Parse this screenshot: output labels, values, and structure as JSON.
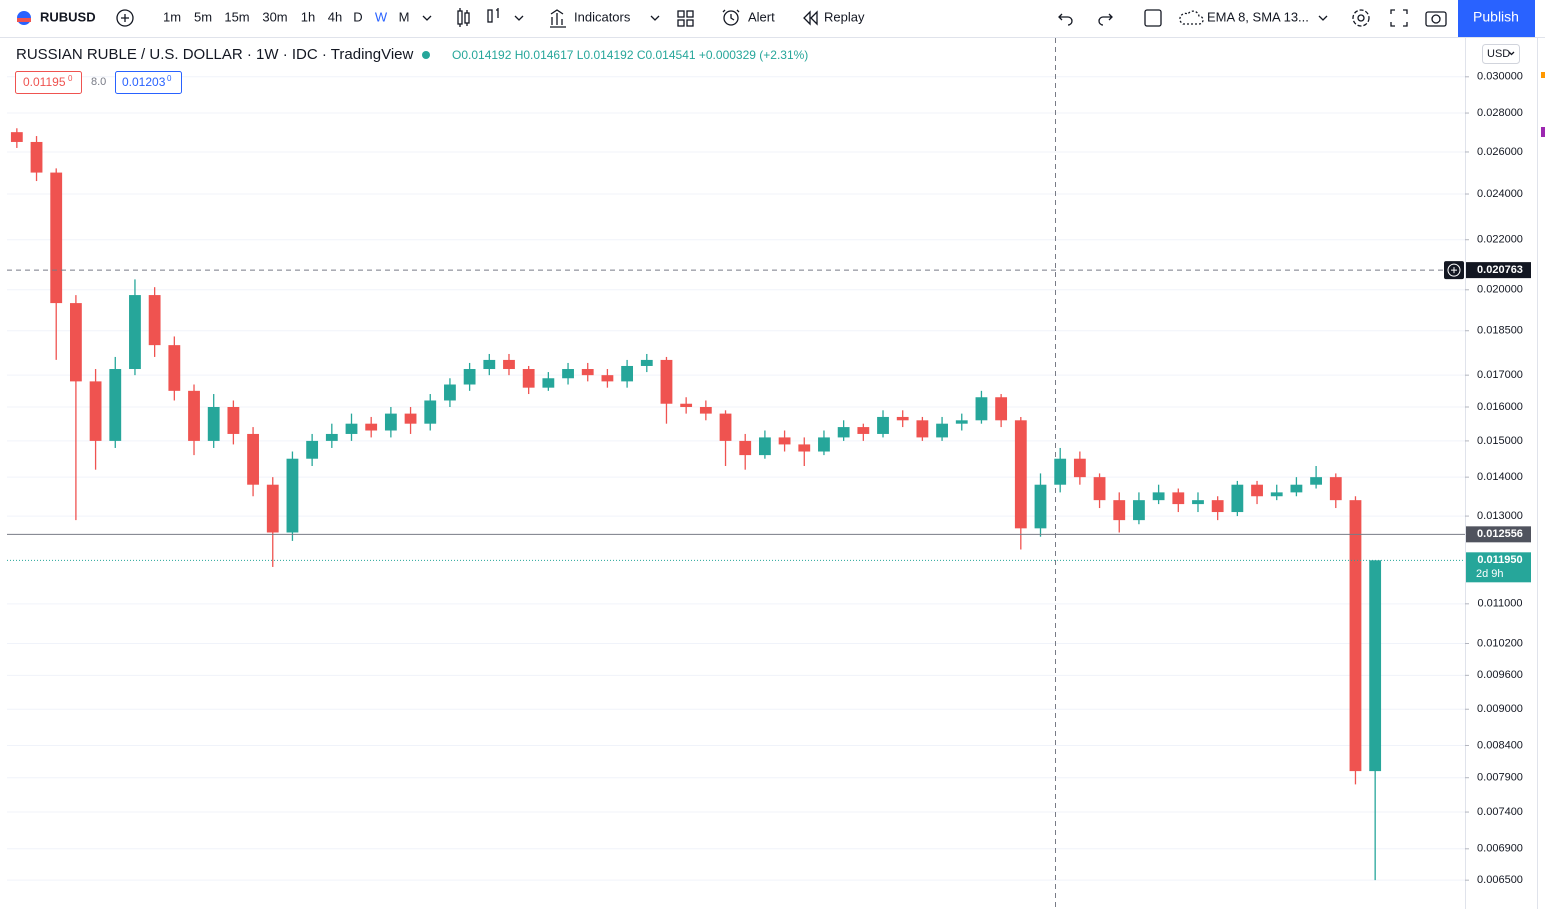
{
  "toolbar": {
    "symbol": "RUBUSD",
    "intervals": [
      "1m",
      "5m",
      "15m",
      "30m",
      "1h",
      "4h",
      "D",
      "W",
      "M"
    ],
    "active_interval_index": 7,
    "indicators": "Indicators",
    "alert": "Alert",
    "replay": "Replay",
    "studies": "EMA 8, SMA 13...",
    "publish": "Publish"
  },
  "legend": {
    "title": "RUSSIAN RUBLE / U.S. DOLLAR · 1W · IDC · TradingView",
    "ohlc": "O0.014192 H0.014617 L0.014192 C0.014541 +0.000329 (+2.31%)",
    "bid": "0.01195",
    "bid_sup": "0",
    "spread": "8.0",
    "ask": "0.01203",
    "ask_sup": "0"
  },
  "chart_data": {
    "type": "candlestick",
    "log_scale": true,
    "grid": true,
    "up_color": "#26a69a",
    "down_color": "#ef5350",
    "currency": "USD",
    "ylim": [
      0.0062,
      0.0323
    ],
    "yticks": [
      {
        "value": 0.0065,
        "label": "0.006500"
      },
      {
        "value": 0.0069,
        "label": "0.006900"
      },
      {
        "value": 0.0074,
        "label": "0.007400"
      },
      {
        "value": 0.0079,
        "label": "0.007900"
      },
      {
        "value": 0.0084,
        "label": "0.008400"
      },
      {
        "value": 0.009,
        "label": "0.009000"
      },
      {
        "value": 0.0096,
        "label": "0.009600"
      },
      {
        "value": 0.0102,
        "label": "0.010200"
      },
      {
        "value": 0.011,
        "label": "0.011000"
      },
      {
        "value": 0.013,
        "label": "0.013000"
      },
      {
        "value": 0.014,
        "label": "0.014000"
      },
      {
        "value": 0.015,
        "label": "0.015000"
      },
      {
        "value": 0.016,
        "label": "0.016000"
      },
      {
        "value": 0.017,
        "label": "0.017000"
      },
      {
        "value": 0.0185,
        "label": "0.018500"
      },
      {
        "value": 0.02,
        "label": "0.020000"
      },
      {
        "value": 0.022,
        "label": "0.022000"
      },
      {
        "value": 0.024,
        "label": "0.024000"
      },
      {
        "value": 0.026,
        "label": "0.026000"
      },
      {
        "value": 0.028,
        "label": "0.028000"
      },
      {
        "value": 0.03,
        "label": "0.030000"
      }
    ],
    "crosshair_price": 0.020763,
    "line_price": 0.012556,
    "last_price": {
      "value": 0.01195,
      "label": "0.011950"
    },
    "countdown": "2d 9h",
    "open": [
      0.027,
      0.0265,
      0.025,
      0.0195,
      0.0168,
      0.015,
      0.0172,
      0.0198,
      0.018,
      0.0165,
      0.015,
      0.016,
      0.0152,
      0.0138,
      0.0126,
      0.0145,
      0.015,
      0.0152,
      0.0155,
      0.0153,
      0.0158,
      0.0155,
      0.0162,
      0.0167,
      0.0172,
      0.0175,
      0.0172,
      0.0166,
      0.0169,
      0.0172,
      0.017,
      0.0168,
      0.0173,
      0.0175,
      0.0161,
      0.016,
      0.0158,
      0.015,
      0.0146,
      0.0151,
      0.0149,
      0.0147,
      0.0151,
      0.0154,
      0.0152,
      0.0157,
      0.0156,
      0.0151,
      0.0155,
      0.0156,
      0.0163,
      0.0156,
      0.0127,
      0.0138,
      0.0145,
      0.014,
      0.0134,
      0.0129,
      0.0134,
      0.0136,
      0.0133,
      0.0134,
      0.0131,
      0.0138,
      0.0135,
      0.0136,
      0.0138,
      0.014,
      0.0134,
      0.008
    ],
    "high": [
      0.0272,
      0.0268,
      0.0252,
      0.0198,
      0.0172,
      0.0176,
      0.0204,
      0.0201,
      0.0183,
      0.0167,
      0.0164,
      0.0162,
      0.0154,
      0.014,
      0.0147,
      0.0152,
      0.0155,
      0.0158,
      0.0157,
      0.016,
      0.016,
      0.0164,
      0.0169,
      0.0174,
      0.0177,
      0.0177,
      0.0173,
      0.0171,
      0.0174,
      0.0174,
      0.0172,
      0.0175,
      0.0177,
      0.0176,
      0.0163,
      0.0162,
      0.0159,
      0.0152,
      0.0153,
      0.0153,
      0.0151,
      0.0153,
      0.0156,
      0.0155,
      0.0159,
      0.0159,
      0.0157,
      0.0157,
      0.0158,
      0.0165,
      0.0164,
      0.0157,
      0.0141,
      0.0148,
      0.0147,
      0.0141,
      0.0136,
      0.0136,
      0.0138,
      0.0137,
      0.0136,
      0.0135,
      0.0139,
      0.0139,
      0.0138,
      0.014,
      0.0143,
      0.0141,
      0.0135,
      0.01195
    ],
    "low": [
      0.0262,
      0.0246,
      0.0175,
      0.0129,
      0.0142,
      0.0148,
      0.017,
      0.0176,
      0.0162,
      0.0146,
      0.0148,
      0.0149,
      0.0135,
      0.0118,
      0.0124,
      0.0143,
      0.0148,
      0.015,
      0.0151,
      0.0151,
      0.0152,
      0.0153,
      0.016,
      0.0165,
      0.017,
      0.017,
      0.0164,
      0.0165,
      0.0167,
      0.0168,
      0.0166,
      0.0166,
      0.0171,
      0.0155,
      0.0158,
      0.0156,
      0.0143,
      0.0142,
      0.0145,
      0.0147,
      0.0143,
      0.0146,
      0.015,
      0.015,
      0.0151,
      0.0154,
      0.015,
      0.015,
      0.0153,
      0.0155,
      0.0154,
      0.0122,
      0.0125,
      0.0136,
      0.0138,
      0.0132,
      0.0126,
      0.0128,
      0.0133,
      0.0131,
      0.0131,
      0.0129,
      0.013,
      0.0133,
      0.0134,
      0.0135,
      0.0137,
      0.0132,
      0.0078,
      0.0065
    ],
    "close": [
      0.0265,
      0.025,
      0.0195,
      0.0168,
      0.015,
      0.0172,
      0.0198,
      0.018,
      0.0165,
      0.015,
      0.016,
      0.0152,
      0.0138,
      0.0126,
      0.0145,
      0.015,
      0.0152,
      0.0155,
      0.0153,
      0.0158,
      0.0155,
      0.0162,
      0.0167,
      0.0172,
      0.0175,
      0.0172,
      0.0166,
      0.0169,
      0.0172,
      0.017,
      0.0168,
      0.0173,
      0.0175,
      0.0161,
      0.016,
      0.0158,
      0.015,
      0.0146,
      0.0151,
      0.0149,
      0.0147,
      0.0151,
      0.0154,
      0.0152,
      0.0157,
      0.0156,
      0.0151,
      0.0155,
      0.0156,
      0.0163,
      0.0156,
      0.0127,
      0.0138,
      0.0145,
      0.014,
      0.0134,
      0.0129,
      0.0134,
      0.0136,
      0.0133,
      0.0134,
      0.0131,
      0.0138,
      0.0135,
      0.0136,
      0.0138,
      0.014,
      0.0134,
      0.008,
      0.01195
    ]
  }
}
